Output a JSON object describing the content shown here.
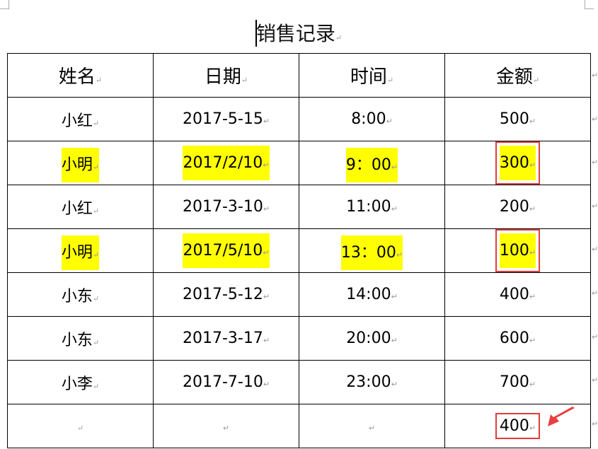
{
  "document": {
    "title": "销售记录",
    "paragraph_mark": "↵"
  },
  "table": {
    "headers": [
      "姓名",
      "日期",
      "时间",
      "金额"
    ],
    "rows": [
      {
        "cells": [
          "小红",
          "2017-5-15",
          "8:00",
          "500"
        ],
        "highlighted": false,
        "amount_boxed": false
      },
      {
        "cells": [
          "小明",
          "2017/2/10",
          "9：00",
          "300"
        ],
        "highlighted": true,
        "amount_boxed": true
      },
      {
        "cells": [
          "小红",
          "2017-3-10",
          "11:00",
          "200"
        ],
        "highlighted": false,
        "amount_boxed": false
      },
      {
        "cells": [
          "小明",
          "2017/5/10",
          "13：00",
          "100"
        ],
        "highlighted": true,
        "amount_boxed": true
      },
      {
        "cells": [
          "小东",
          "2017-5-12",
          "14:00",
          "400"
        ],
        "highlighted": false,
        "amount_boxed": false
      },
      {
        "cells": [
          "小东",
          "2017-3-17",
          "20:00",
          "600"
        ],
        "highlighted": false,
        "amount_boxed": false
      },
      {
        "cells": [
          "小李",
          "2017-7-10",
          "23:00",
          "700"
        ],
        "highlighted": false,
        "amount_boxed": false
      },
      {
        "cells": [
          "",
          "",
          "",
          "400"
        ],
        "highlighted": false,
        "amount_boxed": true
      }
    ]
  },
  "colors": {
    "highlight": "#ffff00",
    "box": "#e03c3c",
    "arrow": "#e84040"
  },
  "annotation": {
    "icon": "red-arrow-icon"
  }
}
